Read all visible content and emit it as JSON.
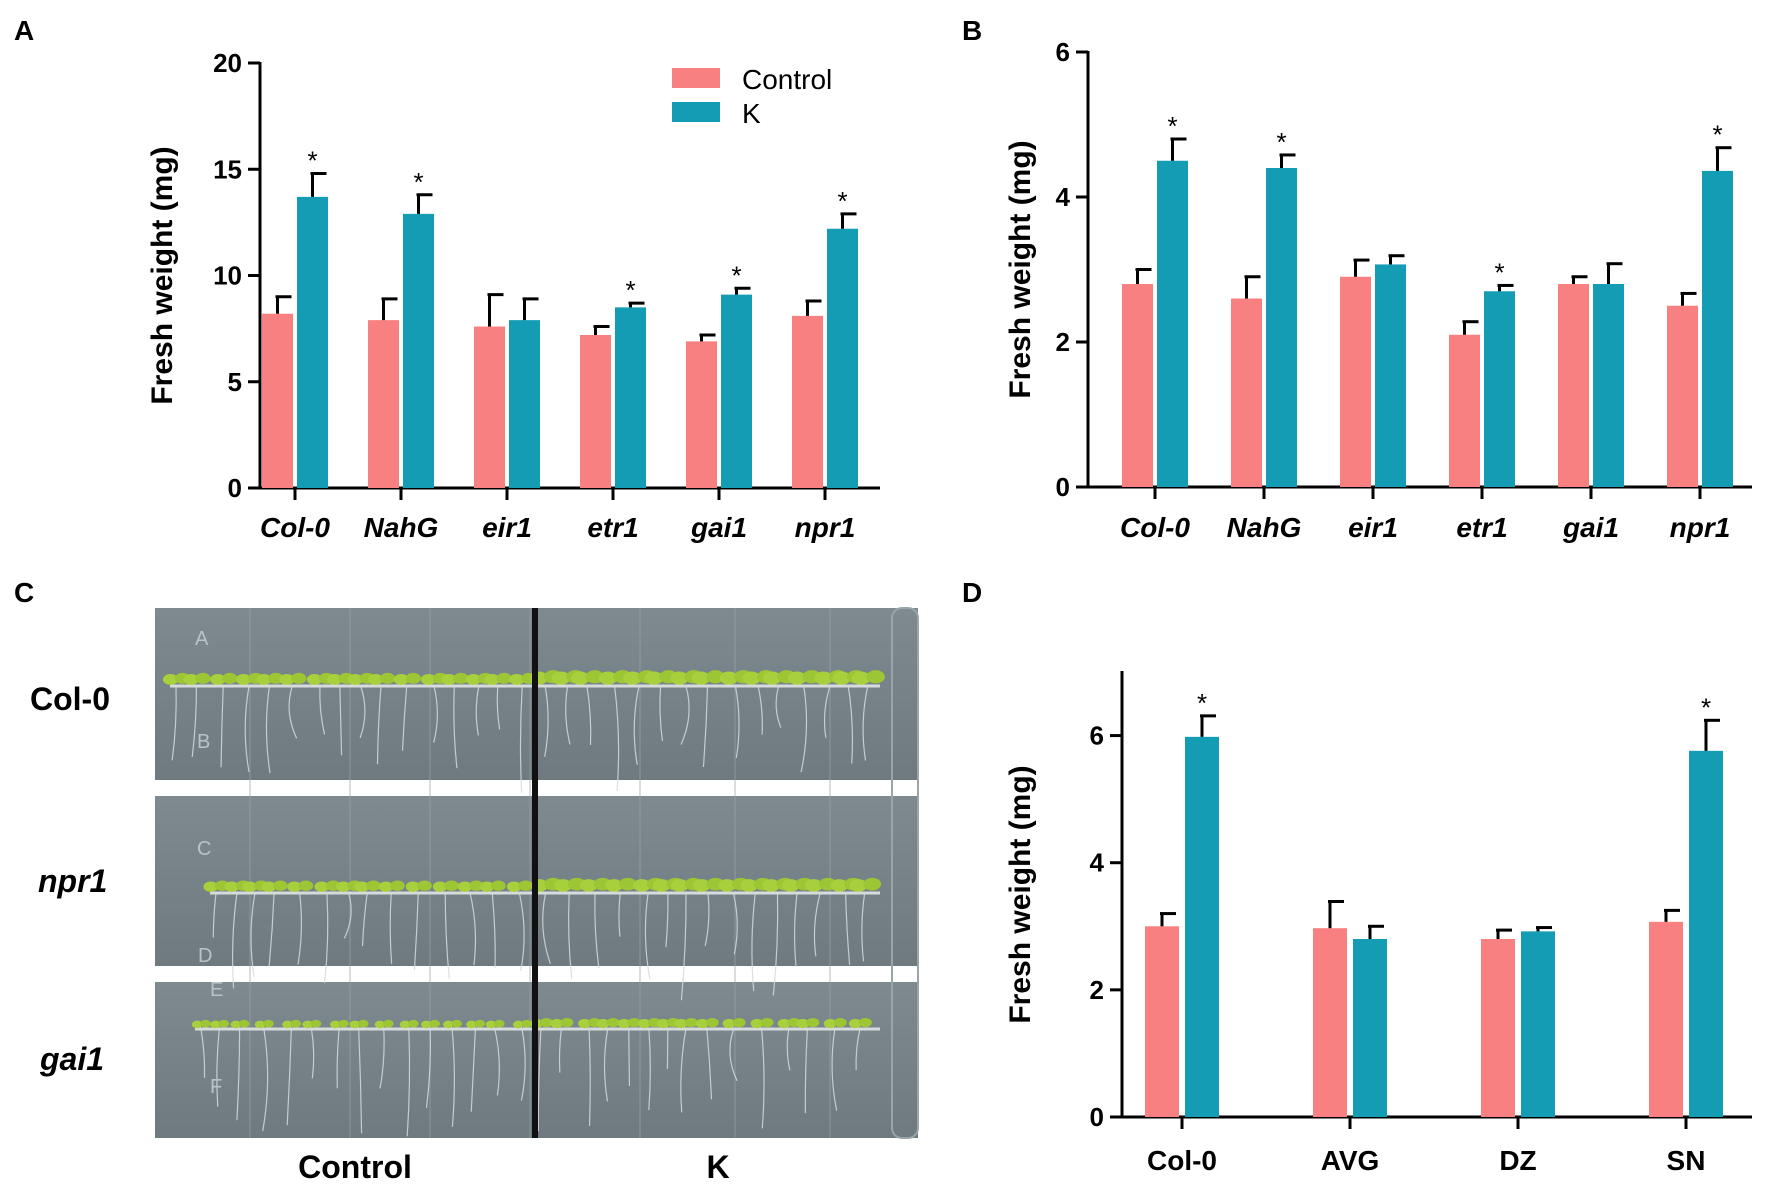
{
  "colors": {
    "control": "#f98080",
    "k": "#149cb4",
    "axis": "#000000"
  },
  "legend": {
    "control_label": "Control",
    "k_label": "K"
  },
  "panels": {
    "A": {
      "label": "A"
    },
    "B": {
      "label": "B"
    },
    "C": {
      "label": "C",
      "row_labels": [
        "Col-0",
        "npr1",
        "gai1"
      ],
      "col_labels": [
        "Control",
        "K"
      ],
      "plate_letters": [
        "A",
        "B",
        "C",
        "D",
        "E",
        "F"
      ]
    },
    "D": {
      "label": "D"
    }
  },
  "chart_data": [
    {
      "id": "A",
      "type": "bar",
      "ylabel": "Fresh weight (mg)",
      "ylim": [
        0,
        20
      ],
      "yticks": [
        0,
        5,
        10,
        15,
        20
      ],
      "categories": [
        "Col-0",
        "NahG",
        "eir1",
        "etr1",
        "gai1",
        "npr1"
      ],
      "italic_categories": true,
      "series": [
        {
          "name": "Control",
          "values": [
            8.2,
            7.9,
            7.6,
            7.2,
            6.9,
            8.1
          ],
          "errors": [
            0.8,
            1.0,
            1.5,
            0.4,
            0.3,
            0.7
          ]
        },
        {
          "name": "K",
          "values": [
            13.7,
            12.9,
            7.9,
            8.5,
            9.1,
            12.2
          ],
          "errors": [
            1.1,
            0.9,
            1.0,
            0.2,
            0.3,
            0.7
          ]
        }
      ],
      "significance": [
        false,
        false,
        false,
        false,
        false,
        false,
        true,
        true,
        false,
        true,
        true,
        true
      ]
    },
    {
      "id": "B",
      "type": "bar",
      "ylabel": "Fresh weight (mg)",
      "ylim": [
        0,
        6
      ],
      "yticks": [
        0,
        2,
        4,
        6
      ],
      "categories": [
        "Col-0",
        "NahG",
        "eir1",
        "etr1",
        "gai1",
        "npr1"
      ],
      "italic_categories": true,
      "series": [
        {
          "name": "Control",
          "values": [
            2.8,
            2.6,
            2.9,
            2.1,
            2.8,
            2.5
          ],
          "errors": [
            0.2,
            0.3,
            0.23,
            0.18,
            0.1,
            0.17
          ]
        },
        {
          "name": "K",
          "values": [
            4.5,
            4.4,
            3.07,
            2.7,
            2.8,
            4.36
          ],
          "errors": [
            0.3,
            0.18,
            0.12,
            0.08,
            0.28,
            0.32
          ]
        }
      ],
      "significance": [
        false,
        false,
        false,
        false,
        false,
        false,
        true,
        true,
        false,
        true,
        false,
        true
      ]
    },
    {
      "id": "D",
      "type": "bar",
      "ylabel": "Fresh weight (mg)",
      "ylim": [
        0,
        7
      ],
      "yticks": [
        0,
        2,
        4,
        6
      ],
      "categories": [
        "Col-0",
        "AVG",
        "DZ",
        "SN"
      ],
      "italic_categories": false,
      "series": [
        {
          "name": "Control",
          "values": [
            3.0,
            2.97,
            2.8,
            3.07
          ],
          "errors": [
            0.2,
            0.42,
            0.14,
            0.18
          ]
        },
        {
          "name": "K",
          "values": [
            5.98,
            2.8,
            2.92,
            5.76
          ],
          "errors": [
            0.33,
            0.2,
            0.06,
            0.48
          ]
        }
      ],
      "significance": [
        false,
        false,
        false,
        false,
        true,
        false,
        false,
        true
      ]
    }
  ],
  "significance_mark": "*"
}
